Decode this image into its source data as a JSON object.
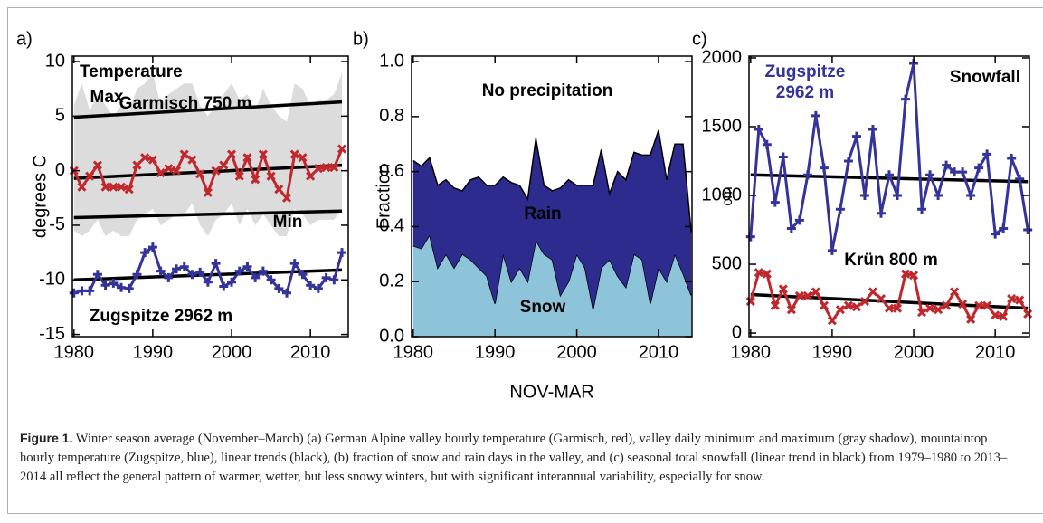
{
  "chart_data": [
    {
      "type": "line",
      "panel_label": "a)",
      "title": "Temperature",
      "ylabel": "degrees C",
      "xlim": [
        1979.8,
        2014.8
      ],
      "ylim": [
        -15.2,
        10.5
      ],
      "xticks": [
        1980,
        1990,
        2000,
        2010
      ],
      "yticks": [
        10,
        5,
        0,
        -5,
        -10,
        -15
      ],
      "x": [
        1980,
        1981,
        1982,
        1983,
        1984,
        1985,
        1986,
        1987,
        1988,
        1989,
        1990,
        1991,
        1992,
        1993,
        1994,
        1995,
        1996,
        1997,
        1998,
        1999,
        2000,
        2001,
        2002,
        2003,
        2004,
        2005,
        2006,
        2007,
        2008,
        2009,
        2010,
        2011,
        2012,
        2013,
        2014
      ],
      "band": {
        "color": "#dcdcdc",
        "upper": [
          6,
          8,
          5.5,
          7,
          6,
          5,
          6,
          5.5,
          7.5,
          8,
          9,
          6,
          7,
          7.5,
          8,
          8,
          6,
          5,
          6,
          7,
          8,
          6.5,
          7,
          5.5,
          7.5,
          6,
          5,
          4.5,
          8,
          7.5,
          6,
          6.5,
          6.5,
          7,
          9
        ],
        "lower": [
          -5.5,
          -6,
          -5.5,
          -4.5,
          -6,
          -5.5,
          -6,
          -6,
          -4.5,
          -4,
          -3.5,
          -5,
          -4.5,
          -4,
          -4,
          -3,
          -5,
          -6,
          -4.5,
          -4,
          -3,
          -5,
          -3.5,
          -5,
          -4,
          -5,
          -6,
          -6,
          -3.5,
          -4,
          -5,
          -4.5,
          -4.5,
          -4.5,
          -3.5
        ]
      },
      "series": [
        {
          "name": "Garmisch 750 m",
          "color": "#c0282d",
          "marker": "x",
          "values": [
            0,
            -1.5,
            -0.5,
            0.5,
            -1.5,
            -1.5,
            -1.5,
            -1.7,
            0.5,
            1.2,
            1,
            -0.2,
            0.2,
            0,
            1.5,
            1,
            -0.3,
            -2,
            0,
            0.5,
            1.5,
            -0.5,
            1.2,
            -0.8,
            1.5,
            -0.5,
            -1.7,
            -2.5,
            1.5,
            1.2,
            -0.5,
            0.2,
            0.3,
            0.3,
            2
          ]
        },
        {
          "name": "Zugspitze 2962 m",
          "color": "#33339a",
          "marker": "+",
          "values": [
            -11.2,
            -11,
            -11,
            -9.5,
            -10.5,
            -10.3,
            -10.7,
            -10.8,
            -9.5,
            -7.5,
            -7,
            -9.2,
            -9.8,
            -9,
            -8.8,
            -9.5,
            -9.3,
            -10.2,
            -8.5,
            -10.6,
            -10.2,
            -9.2,
            -8.8,
            -9.8,
            -9.2,
            -10,
            -10.8,
            -11.2,
            -8.5,
            -9.5,
            -10.5,
            -10.8,
            -9.8,
            -10,
            -7.5
          ]
        }
      ],
      "trends": [
        {
          "x": [
            1980,
            2014
          ],
          "values": [
            4.9,
            6.3
          ],
          "color": "#000000"
        },
        {
          "x": [
            1980,
            2014
          ],
          "values": [
            -0.7,
            0.5
          ],
          "color": "#000000"
        },
        {
          "x": [
            1980,
            2014
          ],
          "values": [
            -4.3,
            -3.7
          ],
          "color": "#000000"
        },
        {
          "x": [
            1980,
            2014
          ],
          "values": [
            -10,
            -9.1
          ],
          "color": "#000000"
        }
      ],
      "annotations": [
        "Max",
        "Min"
      ]
    },
    {
      "type": "area",
      "stacked": true,
      "panel_label": "b)",
      "ylabel": "Fraction",
      "xlabel": "NOV-MAR",
      "xlim": [
        1979.8,
        2014.1
      ],
      "ylim": [
        0,
        1.02
      ],
      "xticks": [
        1980,
        1990,
        2000,
        2010
      ],
      "yticks": [
        {
          "value": 0,
          "label": "0.0"
        },
        0.2,
        0.4,
        0.6,
        0.8,
        {
          "value": 1,
          "label": "1.0"
        }
      ],
      "x": [
        1980,
        1981,
        1982,
        1983,
        1984,
        1985,
        1986,
        1987,
        1988,
        1989,
        1990,
        1991,
        1992,
        1993,
        1994,
        1995,
        1996,
        1997,
        1998,
        1999,
        2000,
        2001,
        2002,
        2003,
        2004,
        2005,
        2006,
        2007,
        2008,
        2009,
        2010,
        2011,
        2012,
        2013,
        2014
      ],
      "series": [
        {
          "name": "Snow",
          "color": "#8ec4da",
          "values": [
            0.33,
            0.32,
            0.37,
            0.25,
            0.3,
            0.25,
            0.3,
            0.28,
            0.25,
            0.22,
            0.12,
            0.3,
            0.2,
            0.25,
            0.2,
            0.35,
            0.3,
            0.28,
            0.15,
            0.2,
            0.3,
            0.25,
            0.1,
            0.25,
            0.28,
            0.22,
            0.18,
            0.3,
            0.28,
            0.12,
            0.25,
            0.2,
            0.3,
            0.23,
            0.15
          ]
        },
        {
          "name": "Rain",
          "color": "#2e2b8f",
          "values": [
            0.31,
            0.3,
            0.28,
            0.3,
            0.27,
            0.29,
            0.23,
            0.29,
            0.33,
            0.33,
            0.43,
            0.28,
            0.36,
            0.3,
            0.3,
            0.37,
            0.25,
            0.25,
            0.39,
            0.37,
            0.25,
            0.3,
            0.45,
            0.43,
            0.24,
            0.38,
            0.39,
            0.37,
            0.38,
            0.54,
            0.5,
            0.37,
            0.4,
            0.47,
            0.23
          ]
        }
      ],
      "annotations": [
        "No precipitation"
      ]
    },
    {
      "type": "line",
      "panel_label": "c)",
      "title": "Snowfall",
      "ylabel": "cm",
      "xlim": [
        1979.8,
        2014.2
      ],
      "ylim": [
        -26,
        2013
      ],
      "xticks": [
        1980,
        1990,
        2000,
        2010
      ],
      "yticks": [
        0,
        500,
        1000,
        1500,
        2000
      ],
      "x": [
        1980,
        1981,
        1982,
        1983,
        1984,
        1985,
        1986,
        1987,
        1988,
        1989,
        1990,
        1991,
        1992,
        1993,
        1994,
        1995,
        1996,
        1997,
        1998,
        1999,
        2000,
        2001,
        2002,
        2003,
        2004,
        2005,
        2006,
        2007,
        2008,
        2009,
        2010,
        2011,
        2012,
        2013,
        2014
      ],
      "series": [
        {
          "name": "Zugspitze 2962 m",
          "color": "#33339a",
          "marker": "+",
          "values": [
            700,
            1480,
            1370,
            950,
            1280,
            760,
            820,
            1150,
            1580,
            1200,
            600,
            900,
            1250,
            1430,
            1000,
            1480,
            870,
            1150,
            1000,
            1700,
            1960,
            900,
            1150,
            1000,
            1220,
            1170,
            1170,
            1000,
            1200,
            1300,
            720,
            760,
            1270,
            1120,
            750
          ]
        },
        {
          "name": "Krün 800 m",
          "color": "#c0282d",
          "marker": "x",
          "values": [
            230,
            440,
            430,
            200,
            320,
            170,
            270,
            270,
            300,
            200,
            90,
            170,
            200,
            190,
            230,
            300,
            250,
            180,
            180,
            430,
            420,
            150,
            180,
            170,
            200,
            300,
            210,
            100,
            200,
            200,
            130,
            120,
            250,
            240,
            140
          ]
        }
      ],
      "trends": [
        {
          "x": [
            1980,
            2014
          ],
          "values": [
            1150,
            1100
          ],
          "color": "#000000"
        },
        {
          "x": [
            1980,
            2014
          ],
          "values": [
            280,
            180
          ],
          "color": "#000000"
        }
      ]
    }
  ],
  "caption": {
    "label": "Figure 1.",
    "text": "Winter season average (November–March) (a) German Alpine valley hourly temperature (Garmisch, red), valley daily minimum and maximum (gray shadow), mountaintop hourly temperature (Zugspitze, blue), linear trends (black), (b) fraction of snow and rain days in the valley, and (c) seasonal total snowfall (linear trend in black) from 1979–1980 to 2013–2014 all reflect the general pattern of warmer, wetter, but less snowy winters, but with significant interannual variability, especially for snow."
  }
}
